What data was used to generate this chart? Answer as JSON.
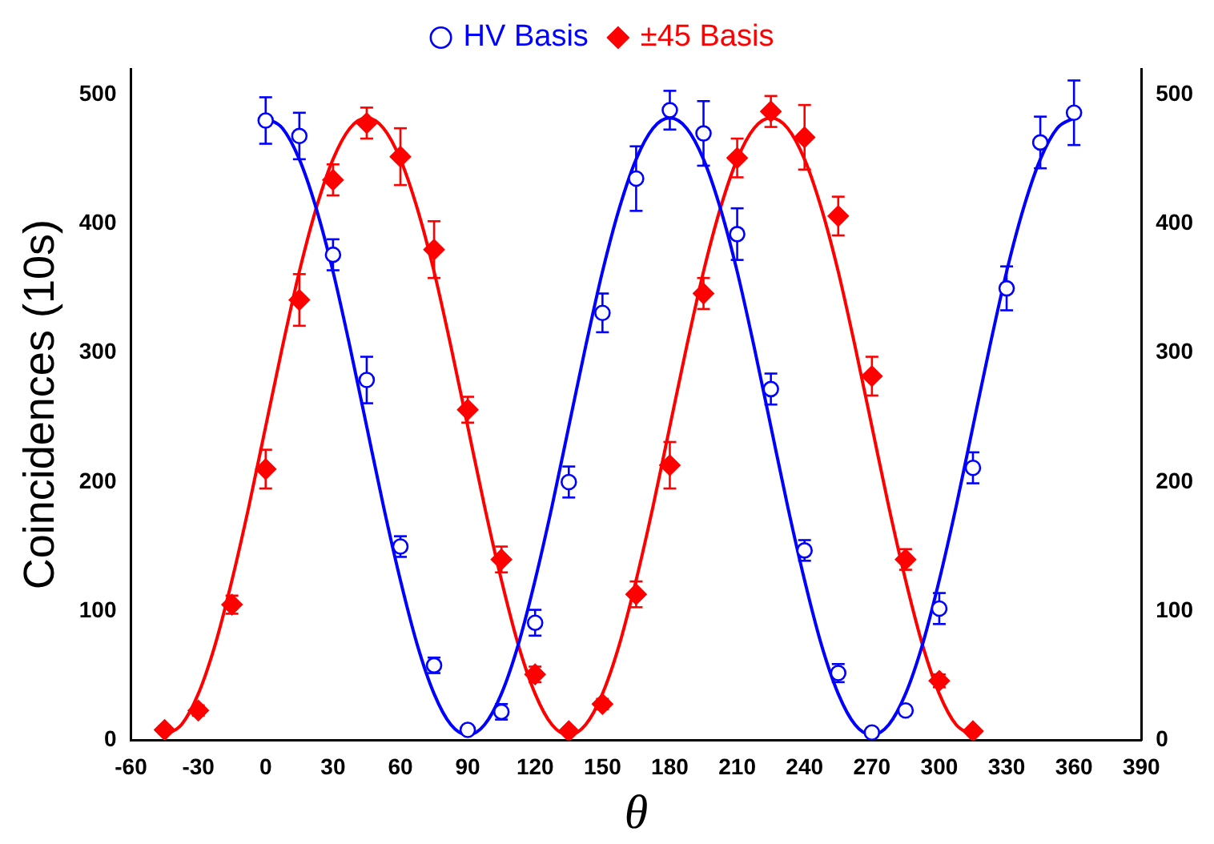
{
  "chart_data": {
    "type": "scatter",
    "xlabel": "θ",
    "ylabel": "Coincidences (10s)",
    "xlim": [
      -60,
      390
    ],
    "xticks": [
      -60,
      -30,
      0,
      30,
      60,
      90,
      120,
      150,
      180,
      210,
      240,
      270,
      300,
      330,
      360,
      390
    ],
    "ylim": [
      0,
      520
    ],
    "yticks": [
      0,
      100,
      200,
      300,
      400,
      500
    ],
    "y2lim": [
      0,
      520
    ],
    "y2ticks": [
      0,
      100,
      200,
      300,
      400,
      500
    ],
    "grid": false,
    "legend": "top",
    "series": [
      {
        "name": "HV Basis",
        "type": "scatter",
        "marker": "circle",
        "color": "#0000ff",
        "x": [
          0,
          15,
          30,
          45,
          60,
          75,
          90,
          105,
          120,
          135,
          150,
          165,
          180,
          195,
          210,
          225,
          240,
          255,
          270,
          285,
          300,
          315,
          330,
          345,
          360
        ],
        "values": [
          480,
          468,
          376,
          279,
          150,
          58,
          8,
          22,
          91,
          200,
          331,
          435,
          488,
          470,
          392,
          272,
          147,
          52,
          6,
          23,
          102,
          211,
          350,
          463,
          486
        ],
        "errors": [
          18,
          18,
          12,
          18,
          8,
          6,
          3,
          6,
          10,
          12,
          15,
          25,
          15,
          25,
          20,
          12,
          8,
          7,
          3,
          3,
          12,
          12,
          17,
          20,
          25
        ]
      },
      {
        "name": "±45 Basis",
        "type": "scatter",
        "marker": "diamond",
        "color": "#ff0000",
        "x": [
          -45,
          -30,
          -15,
          0,
          15,
          30,
          45,
          60,
          75,
          90,
          105,
          120,
          135,
          150,
          165,
          180,
          195,
          210,
          225,
          240,
          255,
          270,
          285,
          300,
          315
        ],
        "values": [
          8,
          23,
          105,
          210,
          341,
          434,
          478,
          452,
          380,
          256,
          140,
          51,
          7,
          28,
          113,
          213,
          346,
          451,
          487,
          467,
          406,
          282,
          140,
          46,
          7
        ],
        "errors": [
          3,
          4,
          7,
          15,
          20,
          12,
          12,
          22,
          22,
          10,
          10,
          6,
          3,
          4,
          10,
          18,
          12,
          15,
          12,
          25,
          15,
          15,
          8,
          5,
          3
        ]
      },
      {
        "type": "line",
        "marker": "none",
        "color": "#0000ff",
        "x": [
          0,
          7.5,
          15,
          22.5,
          30,
          37.5,
          45,
          52.5,
          60,
          67.5,
          75,
          82.5,
          90,
          97.5,
          105,
          112.5,
          120,
          127.5,
          135,
          142.5,
          150,
          157.5,
          165,
          172.5,
          180,
          187.5,
          195,
          202.5,
          210,
          217.5,
          225,
          232.5,
          240,
          247.5,
          255,
          262.5,
          270,
          277.5,
          285,
          292.5,
          300,
          307.5,
          315,
          322.5,
          330,
          337.5,
          345,
          352.5,
          360
        ],
        "values": [
          482,
          474,
          450,
          412,
          363,
          305,
          243,
          181,
          124,
          74,
          36,
          12,
          4,
          12,
          36,
          74,
          124,
          181,
          243,
          305,
          363,
          412,
          450,
          474,
          482,
          474,
          450,
          412,
          363,
          305,
          243,
          181,
          124,
          74,
          36,
          12,
          4,
          12,
          36,
          74,
          124,
          181,
          243,
          305,
          363,
          412,
          450,
          474,
          482
        ]
      },
      {
        "type": "line",
        "marker": "none",
        "color": "#ff0000",
        "x": [
          -45,
          -37.5,
          -30,
          -22.5,
          -15,
          -7.5,
          0,
          7.5,
          15,
          22.5,
          30,
          37.5,
          45,
          52.5,
          60,
          67.5,
          75,
          82.5,
          90,
          97.5,
          105,
          112.5,
          120,
          127.5,
          135,
          142.5,
          150,
          157.5,
          165,
          172.5,
          180,
          187.5,
          195,
          202.5,
          210,
          217.5,
          225,
          232.5,
          240,
          247.5,
          255,
          262.5,
          270,
          277.5,
          285,
          292.5,
          300,
          307.5,
          315
        ],
        "values": [
          4,
          12,
          36,
          74,
          124,
          181,
          243,
          305,
          363,
          412,
          450,
          474,
          482,
          474,
          450,
          412,
          363,
          305,
          243,
          181,
          124,
          74,
          36,
          12,
          4,
          12,
          36,
          74,
          124,
          181,
          243,
          305,
          363,
          412,
          450,
          474,
          482,
          474,
          450,
          412,
          363,
          305,
          243,
          181,
          124,
          74,
          36,
          12,
          4
        ]
      }
    ]
  }
}
